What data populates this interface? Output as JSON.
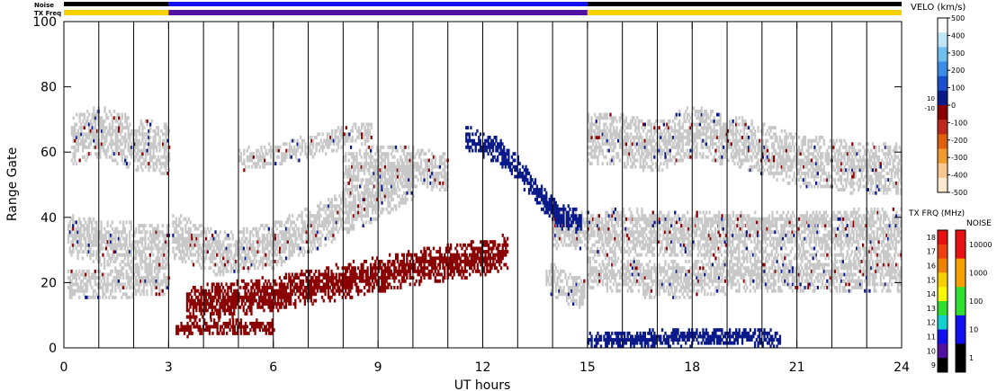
{
  "chart_data": {
    "type": "heatmap",
    "title": "",
    "xlabel": "UT hours",
    "ylabel": "Range Gate",
    "xlim": [
      0,
      24
    ],
    "ylim": [
      0,
      100
    ],
    "x_ticks": [
      "0",
      "3",
      "6",
      "9",
      "12",
      "15",
      "18",
      "21",
      "24"
    ],
    "y_ticks": [
      "0",
      "20",
      "40",
      "60",
      "80",
      "100"
    ],
    "scan_boundaries_hours": [
      1,
      2,
      3,
      4,
      5,
      6,
      7,
      8,
      9,
      10,
      11,
      12,
      13,
      14,
      15,
      16,
      17,
      18,
      19,
      20,
      21,
      22,
      23
    ],
    "strip_labels": {
      "noise": "Noise",
      "tx_freq": "TX Freq"
    },
    "strips": {
      "noise_segments": [
        {
          "start": 0,
          "end": 3,
          "level": "1"
        },
        {
          "start": 3,
          "end": 15,
          "level": "10"
        },
        {
          "start": 15,
          "end": 24,
          "level": "1"
        }
      ],
      "tx_freq_segments": [
        {
          "start": 0,
          "end": 3,
          "mhz": 15
        },
        {
          "start": 3,
          "end": 15,
          "mhz": 10
        },
        {
          "start": 15,
          "end": 24,
          "mhz": 15
        }
      ]
    },
    "velocity_scale": {
      "label": "VELO (km/s)",
      "ticks": [
        "500",
        "400",
        "300",
        "200",
        "100",
        "0",
        "-100",
        "-200",
        "-300",
        "-400",
        "-500"
      ],
      "near_zero_labels": [
        "10",
        "-10"
      ],
      "colors": [
        "#ffffff",
        "#bfe6f7",
        "#6fc0f0",
        "#3a8ee8",
        "#1a4fd0",
        "#0a1a8a",
        "#8b0000",
        "#c0281c",
        "#e06010",
        "#f09a30",
        "#f8c890",
        "#fde8d0"
      ]
    },
    "tx_freq_scale": {
      "label": "TX FRQ (MHz)",
      "ticks": [
        "18",
        "17",
        "16",
        "15",
        "14",
        "13",
        "12",
        "11",
        "10",
        "9"
      ],
      "colors": [
        "#e81010",
        "#f04010",
        "#f08000",
        "#f8d000",
        "#f8f800",
        "#30e030",
        "#10d0d0",
        "#1010f0",
        "#5010a0",
        "#000000"
      ]
    },
    "noise_scale": {
      "label": "NOISE",
      "ticks": [
        "10000",
        "1000",
        "100",
        "10",
        "1"
      ],
      "colors": [
        "#e81010",
        "#f8a000",
        "#30e030",
        "#1010f0",
        "#000000"
      ]
    },
    "ground_scatter_color": "#c8c8c8",
    "bands": [
      {
        "name": "Ground scatter upper (00-03 UT)",
        "kind": "ground",
        "points": [
          [
            0.2,
            63
          ],
          [
            1.0,
            66
          ],
          [
            2.0,
            62
          ],
          [
            3.0,
            60
          ]
        ],
        "thickness": 14
      },
      {
        "name": "Ground scatter mid (00-03 UT)",
        "kind": "ground",
        "points": [
          [
            0.1,
            34
          ],
          [
            1.0,
            32
          ],
          [
            2.0,
            31
          ],
          [
            3.0,
            30
          ]
        ],
        "thickness": 12
      },
      {
        "name": "Ground scatter low (00-03 UT)",
        "kind": "ground",
        "points": [
          [
            0.1,
            19
          ],
          [
            1.0,
            19
          ],
          [
            2.0,
            20
          ],
          [
            3.0,
            21
          ]
        ],
        "thickness": 8
      },
      {
        "name": "Ground scatter arc (03-10 UT)",
        "kind": "ground",
        "points": [
          [
            3.1,
            34
          ],
          [
            4.5,
            28
          ],
          [
            6.0,
            31
          ],
          [
            7.5,
            38
          ],
          [
            9.0,
            46
          ],
          [
            10.0,
            52
          ]
        ],
        "thickness": 12
      },
      {
        "name": "Ground scatter arc high (05-09 UT)",
        "kind": "ground",
        "points": [
          [
            5.0,
            57
          ],
          [
            6.0,
            59
          ],
          [
            7.0,
            61
          ],
          [
            8.0,
            64
          ],
          [
            8.8,
            66
          ]
        ],
        "thickness": 5
      },
      {
        "name": "Ground scatter patch (08-11 UT)",
        "kind": "ground",
        "points": [
          [
            8.0,
            53
          ],
          [
            9.0,
            56
          ],
          [
            10.0,
            55
          ],
          [
            11.0,
            53
          ]
        ],
        "thickness": 10
      },
      {
        "name": "Ground scatter patch (14-15 UT)",
        "kind": "ground",
        "points": [
          [
            13.8,
            22
          ],
          [
            14.3,
            18
          ],
          [
            14.9,
            16
          ]
        ],
        "thickness": 8
      },
      {
        "name": "Ground scatter upper (15-24 UT)",
        "kind": "ground",
        "points": [
          [
            15.0,
            64
          ],
          [
            16.0,
            63
          ],
          [
            17.0,
            61
          ],
          [
            18.0,
            66
          ],
          [
            19.5,
            62
          ],
          [
            21.0,
            57
          ],
          [
            22.5,
            55
          ],
          [
            24.0,
            54
          ]
        ],
        "thickness": 14
      },
      {
        "name": "Ground scatter mid (15-24 UT)",
        "kind": "ground",
        "points": [
          [
            14.0,
            36
          ],
          [
            16.0,
            34
          ],
          [
            18.0,
            33
          ],
          [
            20.0,
            34
          ],
          [
            22.0,
            33
          ],
          [
            24.0,
            34
          ]
        ],
        "thickness": 10
      },
      {
        "name": "Ground scatter low (15-24 UT)",
        "kind": "ground",
        "points": [
          [
            15.0,
            24
          ],
          [
            17.0,
            20
          ],
          [
            19.0,
            22
          ],
          [
            21.0,
            22
          ],
          [
            24.0,
            23
          ]
        ],
        "thickness": 10
      },
      {
        "name": "Ground scatter top (15-24 UT)",
        "kind": "ground",
        "points": [
          [
            15.5,
            40
          ],
          [
            18.0,
            39
          ],
          [
            21.0,
            39
          ],
          [
            24.0,
            40
          ]
        ],
        "thickness": 3
      },
      {
        "name": "Ionospheric scatter rising (03-13 UT)",
        "kind": "away",
        "points": [
          [
            3.5,
            13
          ],
          [
            4.5,
            14
          ],
          [
            6.0,
            16
          ],
          [
            7.5,
            19
          ],
          [
            9.0,
            22
          ],
          [
            10.5,
            25
          ],
          [
            12.0,
            27
          ],
          [
            12.7,
            29
          ]
        ],
        "thickness": 9
      },
      {
        "name": "Ionospheric scatter near range (03-06 UT)",
        "kind": "away",
        "points": [
          [
            3.2,
            5
          ],
          [
            4.0,
            6
          ],
          [
            5.0,
            6
          ],
          [
            6.0,
            6
          ]
        ],
        "thickness": 3
      },
      {
        "name": "Ionospheric scatter descending (11.5-14.5 UT)",
        "kind": "toward",
        "points": [
          [
            11.5,
            64
          ],
          [
            12.4,
            60
          ],
          [
            13.0,
            54
          ],
          [
            13.6,
            46
          ],
          [
            14.2,
            40
          ],
          [
            14.8,
            38
          ]
        ],
        "thickness": 6
      },
      {
        "name": "Near range scatter (15-20 UT)",
        "kind": "toward",
        "points": [
          [
            15.0,
            2
          ],
          [
            16.5,
            2
          ],
          [
            18.0,
            3
          ],
          [
            19.5,
            3
          ],
          [
            20.5,
            2
          ]
        ],
        "thickness": 4
      }
    ]
  }
}
